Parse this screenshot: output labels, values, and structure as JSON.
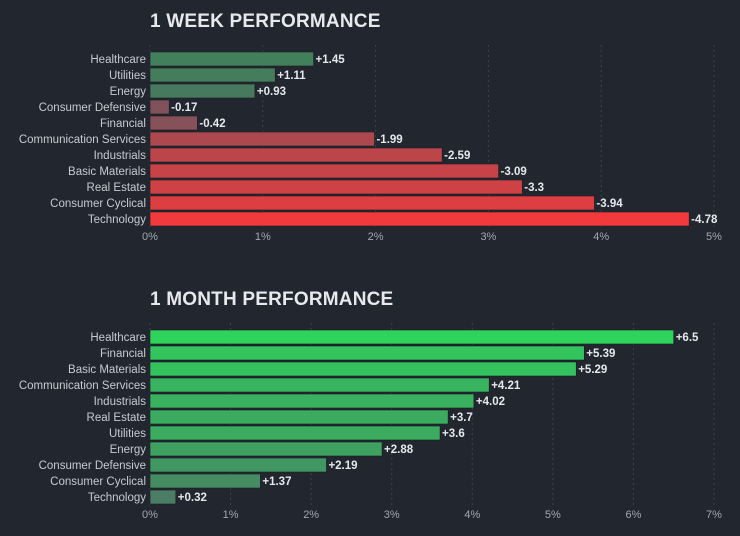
{
  "chart_data": [
    {
      "type": "bar",
      "orientation": "horizontal",
      "title": "1 WEEK PERFORMANCE",
      "categories": [
        "Healthcare",
        "Utilities",
        "Energy",
        "Consumer Defensive",
        "Financial",
        "Communication Services",
        "Industrials",
        "Basic Materials",
        "Real Estate",
        "Consumer Cyclical",
        "Technology"
      ],
      "values": [
        1.45,
        1.11,
        0.93,
        -0.17,
        -0.42,
        -1.99,
        -2.59,
        -3.09,
        -3.3,
        -3.94,
        -4.78
      ],
      "value_labels": [
        "+1.45",
        "+1.11",
        "+0.93",
        "-0.17",
        "-0.42",
        "-1.99",
        "-2.59",
        "-3.09",
        "-3.3",
        "-3.94",
        "-4.78"
      ],
      "bar_magnitude": "absolute value",
      "xlim": [
        0,
        5
      ],
      "xticks": [
        "0%",
        "1%",
        "2%",
        "3%",
        "4%",
        "5%"
      ],
      "grid": true,
      "colors": {
        "positive": "#2ea84f",
        "negative": "#f23a3c",
        "neutral": "#555b66"
      }
    },
    {
      "type": "bar",
      "orientation": "horizontal",
      "title": "1 MONTH PERFORMANCE",
      "categories": [
        "Healthcare",
        "Financial",
        "Basic Materials",
        "Communication Services",
        "Industrials",
        "Real Estate",
        "Utilities",
        "Energy",
        "Consumer Defensive",
        "Consumer Cyclical",
        "Technology"
      ],
      "values": [
        6.5,
        5.39,
        5.29,
        4.21,
        4.02,
        3.7,
        3.6,
        2.88,
        2.19,
        1.37,
        0.32
      ],
      "value_labels": [
        "+6.5",
        "+5.39",
        "+5.29",
        "+4.21",
        "+4.02",
        "+3.7",
        "+3.6",
        "+2.88",
        "+2.19",
        "+1.37",
        "+0.32"
      ],
      "bar_magnitude": "absolute value",
      "xlim": [
        0,
        7
      ],
      "xticks": [
        "0%",
        "1%",
        "2%",
        "3%",
        "4%",
        "5%",
        "6%",
        "7%"
      ],
      "grid": true,
      "colors": {
        "positive": "#2ed35c",
        "negative": "#f23a3c",
        "neutral": "#555b66"
      }
    }
  ]
}
